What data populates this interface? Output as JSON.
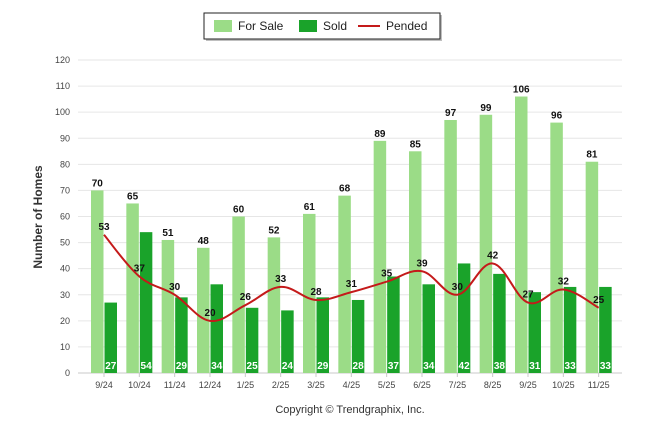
{
  "chart_data": {
    "type": "bar",
    "ylabel": "Number of Homes",
    "ylim": [
      0,
      120
    ],
    "yticks": [
      0,
      10,
      20,
      30,
      40,
      50,
      60,
      70,
      80,
      90,
      100,
      110,
      120
    ],
    "categories": [
      "9/24",
      "10/24",
      "11/24",
      "12/24",
      "1/25",
      "2/25",
      "3/25",
      "4/25",
      "5/25",
      "6/25",
      "7/25",
      "8/25",
      "9/25",
      "10/25",
      "11/25"
    ],
    "series": [
      {
        "name": "For Sale",
        "kind": "bar",
        "color": "#9bdc87",
        "values": [
          70,
          65,
          51,
          48,
          60,
          52,
          61,
          68,
          89,
          85,
          97,
          99,
          106,
          96,
          81
        ]
      },
      {
        "name": "Sold",
        "kind": "bar",
        "color": "#1aa32a",
        "values": [
          27,
          54,
          29,
          34,
          25,
          24,
          29,
          28,
          37,
          34,
          42,
          38,
          31,
          33,
          33
        ]
      },
      {
        "name": "Pended",
        "kind": "line",
        "color": "#c41a1a",
        "values": [
          53,
          37,
          30,
          20,
          26,
          33,
          28,
          31,
          35,
          39,
          30,
          42,
          27,
          32,
          25
        ]
      }
    ],
    "legend_position": "top-center",
    "copyright": "Copyright © Trendgraphix, Inc."
  }
}
